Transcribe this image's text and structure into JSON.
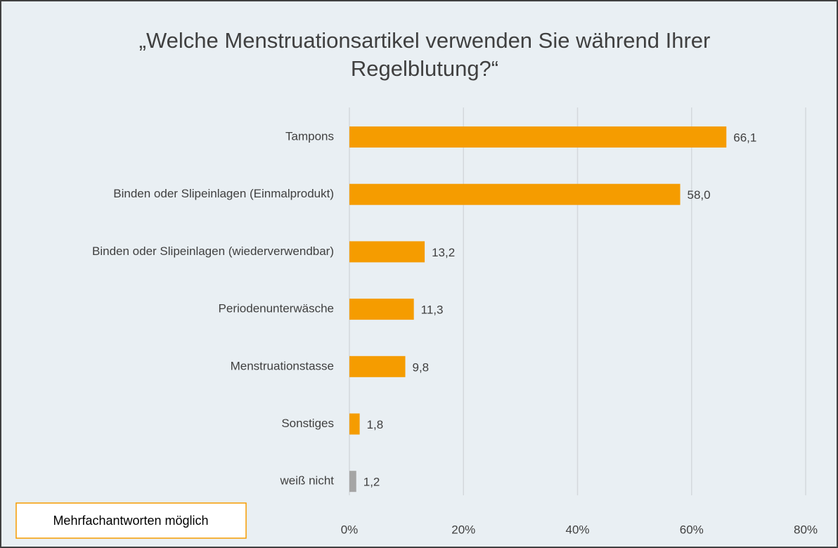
{
  "chart_data": {
    "type": "bar",
    "orientation": "horizontal",
    "title": [
      "„Welche Menstruationsartikel verwenden Sie während Ihrer",
      "Regelblutung?“"
    ],
    "categories": [
      "Tampons",
      "Binden oder Slipeinlagen (Einmalprodukt)",
      "Binden oder Slipeinlagen (wiederverwendbar)",
      "Periodenunterwäsche",
      "Menstruationstasse",
      "Sonstiges",
      "weiß nicht"
    ],
    "values": [
      66.1,
      58.0,
      13.2,
      11.3,
      9.8,
      1.8,
      1.2
    ],
    "value_labels": [
      "66,1",
      "58,0",
      "13,2",
      "11,3",
      "9,8",
      "1,8",
      "1,2"
    ],
    "colors": [
      "#f59c00",
      "#f59c00",
      "#f59c00",
      "#f59c00",
      "#f59c00",
      "#f59c00",
      "#a5a5a5"
    ],
    "xlim": [
      0,
      80
    ],
    "xticks": [
      {
        "value": 0,
        "label": "0%"
      },
      {
        "value": 20,
        "label": "20%"
      },
      {
        "value": 40,
        "label": "40%"
      },
      {
        "value": 60,
        "label": "60%"
      },
      {
        "value": 80,
        "label": "80%"
      }
    ],
    "grid": true,
    "annotation": "Mehrfachantworten möglich"
  }
}
